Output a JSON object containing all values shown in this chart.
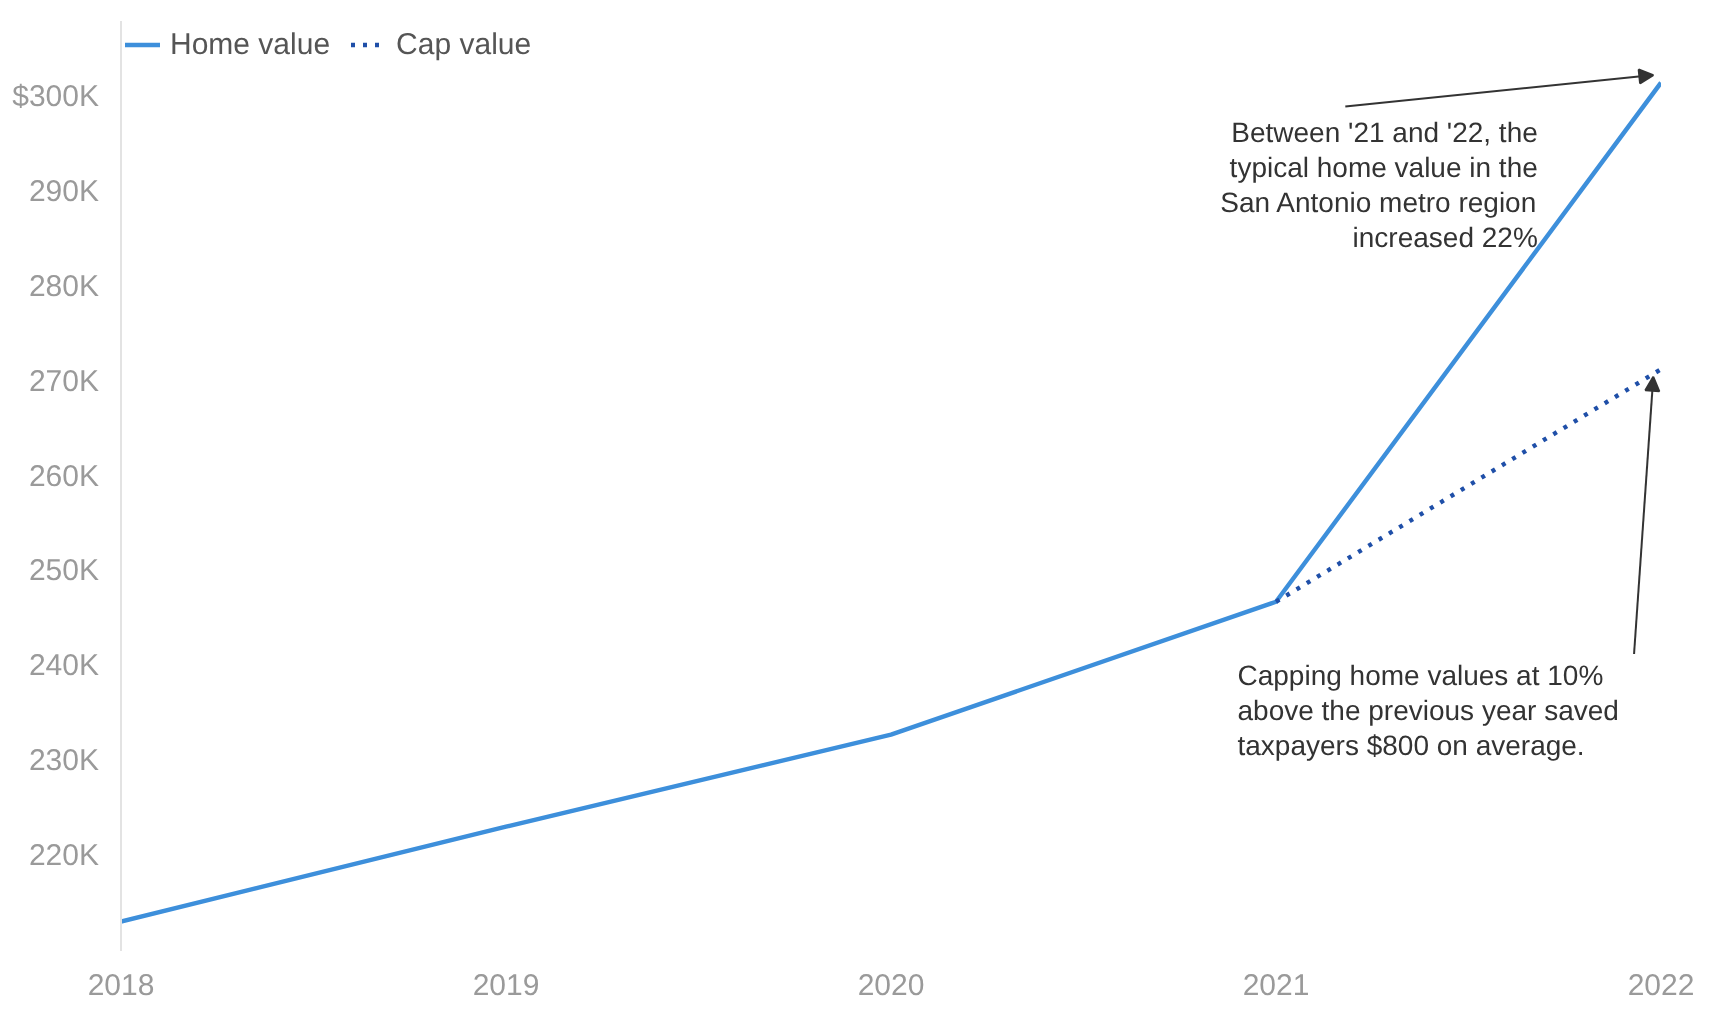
{
  "chart_data": {
    "type": "line",
    "x": [
      2018,
      2019,
      2020,
      2021,
      2022
    ],
    "series": [
      {
        "name": "Home value",
        "color": "#3d8fdb",
        "values": [
          213.1,
          223.1,
          232.8,
          246.8,
          301.5
        ],
        "line_style": "solid"
      },
      {
        "name": "Cap value",
        "color": "#1f4fa8",
        "values": [
          null,
          null,
          null,
          246.8,
          271.3
        ],
        "line_style": "dotted"
      }
    ],
    "xlim": [
      2018,
      2022
    ],
    "ylim": [
      210,
      308
    ],
    "xticks": [
      2018,
      2019,
      2020,
      2021,
      2022
    ],
    "yticks": [
      {
        "value": 220,
        "label": "220K"
      },
      {
        "value": 230,
        "label": "230K"
      },
      {
        "value": 240,
        "label": "240K"
      },
      {
        "value": 250,
        "label": "250K"
      },
      {
        "value": 260,
        "label": "260K"
      },
      {
        "value": 270,
        "label": "270K"
      },
      {
        "value": 280,
        "label": "280K"
      },
      {
        "value": 290,
        "label": "290K"
      },
      {
        "value": 300,
        "label": "$300K"
      }
    ],
    "grid": false,
    "legend": "top left",
    "marker": "none",
    "annotations": [
      {
        "text": "Between '21 and '22, the\ntypical home value in the\nSan Antonio metro region\nincreased 22%",
        "x": 2022,
        "y": 301.5
      },
      {
        "text": "Capping home values at 10%\nabove the previous year saved\ntaxpayers $800 on average.",
        "x": 2022,
        "y": 271.3
      }
    ]
  }
}
